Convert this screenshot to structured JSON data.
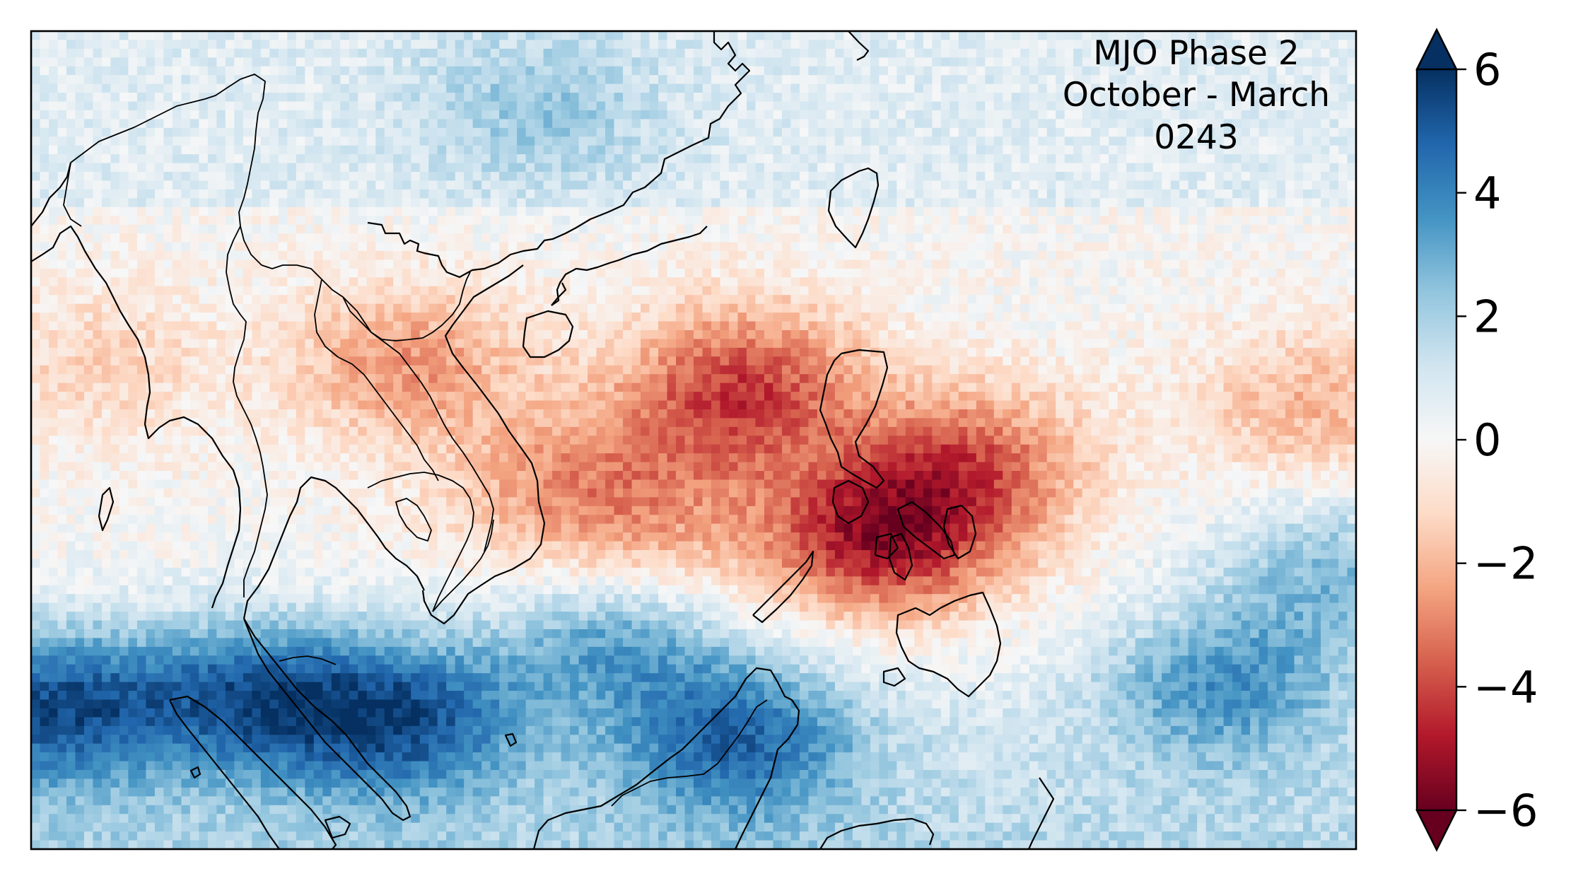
{
  "map": {
    "title_lines": [
      "MJO Phase 2",
      "October - March",
      "0243"
    ],
    "region": "Southeast Asia and Western Pacific",
    "extent": {
      "lon": [
        90,
        150
      ],
      "lat": [
        -5,
        32
      ]
    },
    "frame_color": "#000000",
    "coastline_color": "#000000",
    "anomaly_field": {
      "grid": {
        "cols": 150,
        "rows": 93
      },
      "negative_centers": [
        {
          "name": "philippine-sea",
          "lon": 132.5,
          "lat": 12.5,
          "value": -3.3
        },
        {
          "name": "east-of-mindanao",
          "lon": 128.5,
          "lat": 9.0,
          "value": -4.8
        },
        {
          "name": "luzon",
          "lon": 122.5,
          "lat": 16.5,
          "value": -3.0
        },
        {
          "name": "gulf-of-tonkin",
          "lon": 107.0,
          "lat": 17.0,
          "value": -2.6
        },
        {
          "name": "south-china-sea-west",
          "lon": 114.0,
          "lat": 11.5,
          "value": -2.2
        },
        {
          "name": "south-china-sea-south",
          "lon": 117.5,
          "lat": 8.0,
          "value": -2.2
        },
        {
          "name": "south-china-sea-center",
          "lon": 121.0,
          "lat": 14.0,
          "value": -1.8
        },
        {
          "name": "western-pacific-east",
          "lon": 148.0,
          "lat": 15.0,
          "value": -2.0
        },
        {
          "name": "bay-of-bengal",
          "lon": 93.0,
          "lat": 17.0,
          "value": -1.3
        }
      ],
      "positive_centers": [
        {
          "name": "sumatra-west",
          "lon": 91.0,
          "lat": 1.5,
          "value": 4.5
        },
        {
          "name": "malacca-strait",
          "lon": 100.0,
          "lat": 2.0,
          "value": 4.0
        },
        {
          "name": "java-sea-north",
          "lon": 107.0,
          "lat": 1.0,
          "value": 4.2
        },
        {
          "name": "borneo-north-sea",
          "lon": 116.5,
          "lat": 5.0,
          "value": 3.5
        },
        {
          "name": "celebes-sea",
          "lon": 122.0,
          "lat": 0.0,
          "value": 3.8
        },
        {
          "name": "east-china-sea",
          "lon": 113.0,
          "lat": 28.5,
          "value": 1.6
        },
        {
          "name": "western-pacific-south",
          "lon": 144.0,
          "lat": 2.5,
          "value": 3.0
        },
        {
          "name": "pacific-south-east",
          "lon": 149.0,
          "lat": 7.5,
          "value": 2.5
        }
      ]
    }
  },
  "colorbar": {
    "colormap": "RdBu",
    "vmin": -6,
    "vmax": 6,
    "extend": "both",
    "ticks": [
      -6,
      -4,
      -2,
      0,
      2,
      4,
      6
    ],
    "tick_labels": [
      "−6",
      "−4",
      "−2",
      "0",
      "2",
      "4",
      "6"
    ],
    "colors": [
      "#67001f",
      "#b2182b",
      "#d6604d",
      "#f4a582",
      "#fddbc7",
      "#f7f7f7",
      "#d1e5f0",
      "#92c5de",
      "#4393c3",
      "#2166ac",
      "#053061"
    ]
  }
}
